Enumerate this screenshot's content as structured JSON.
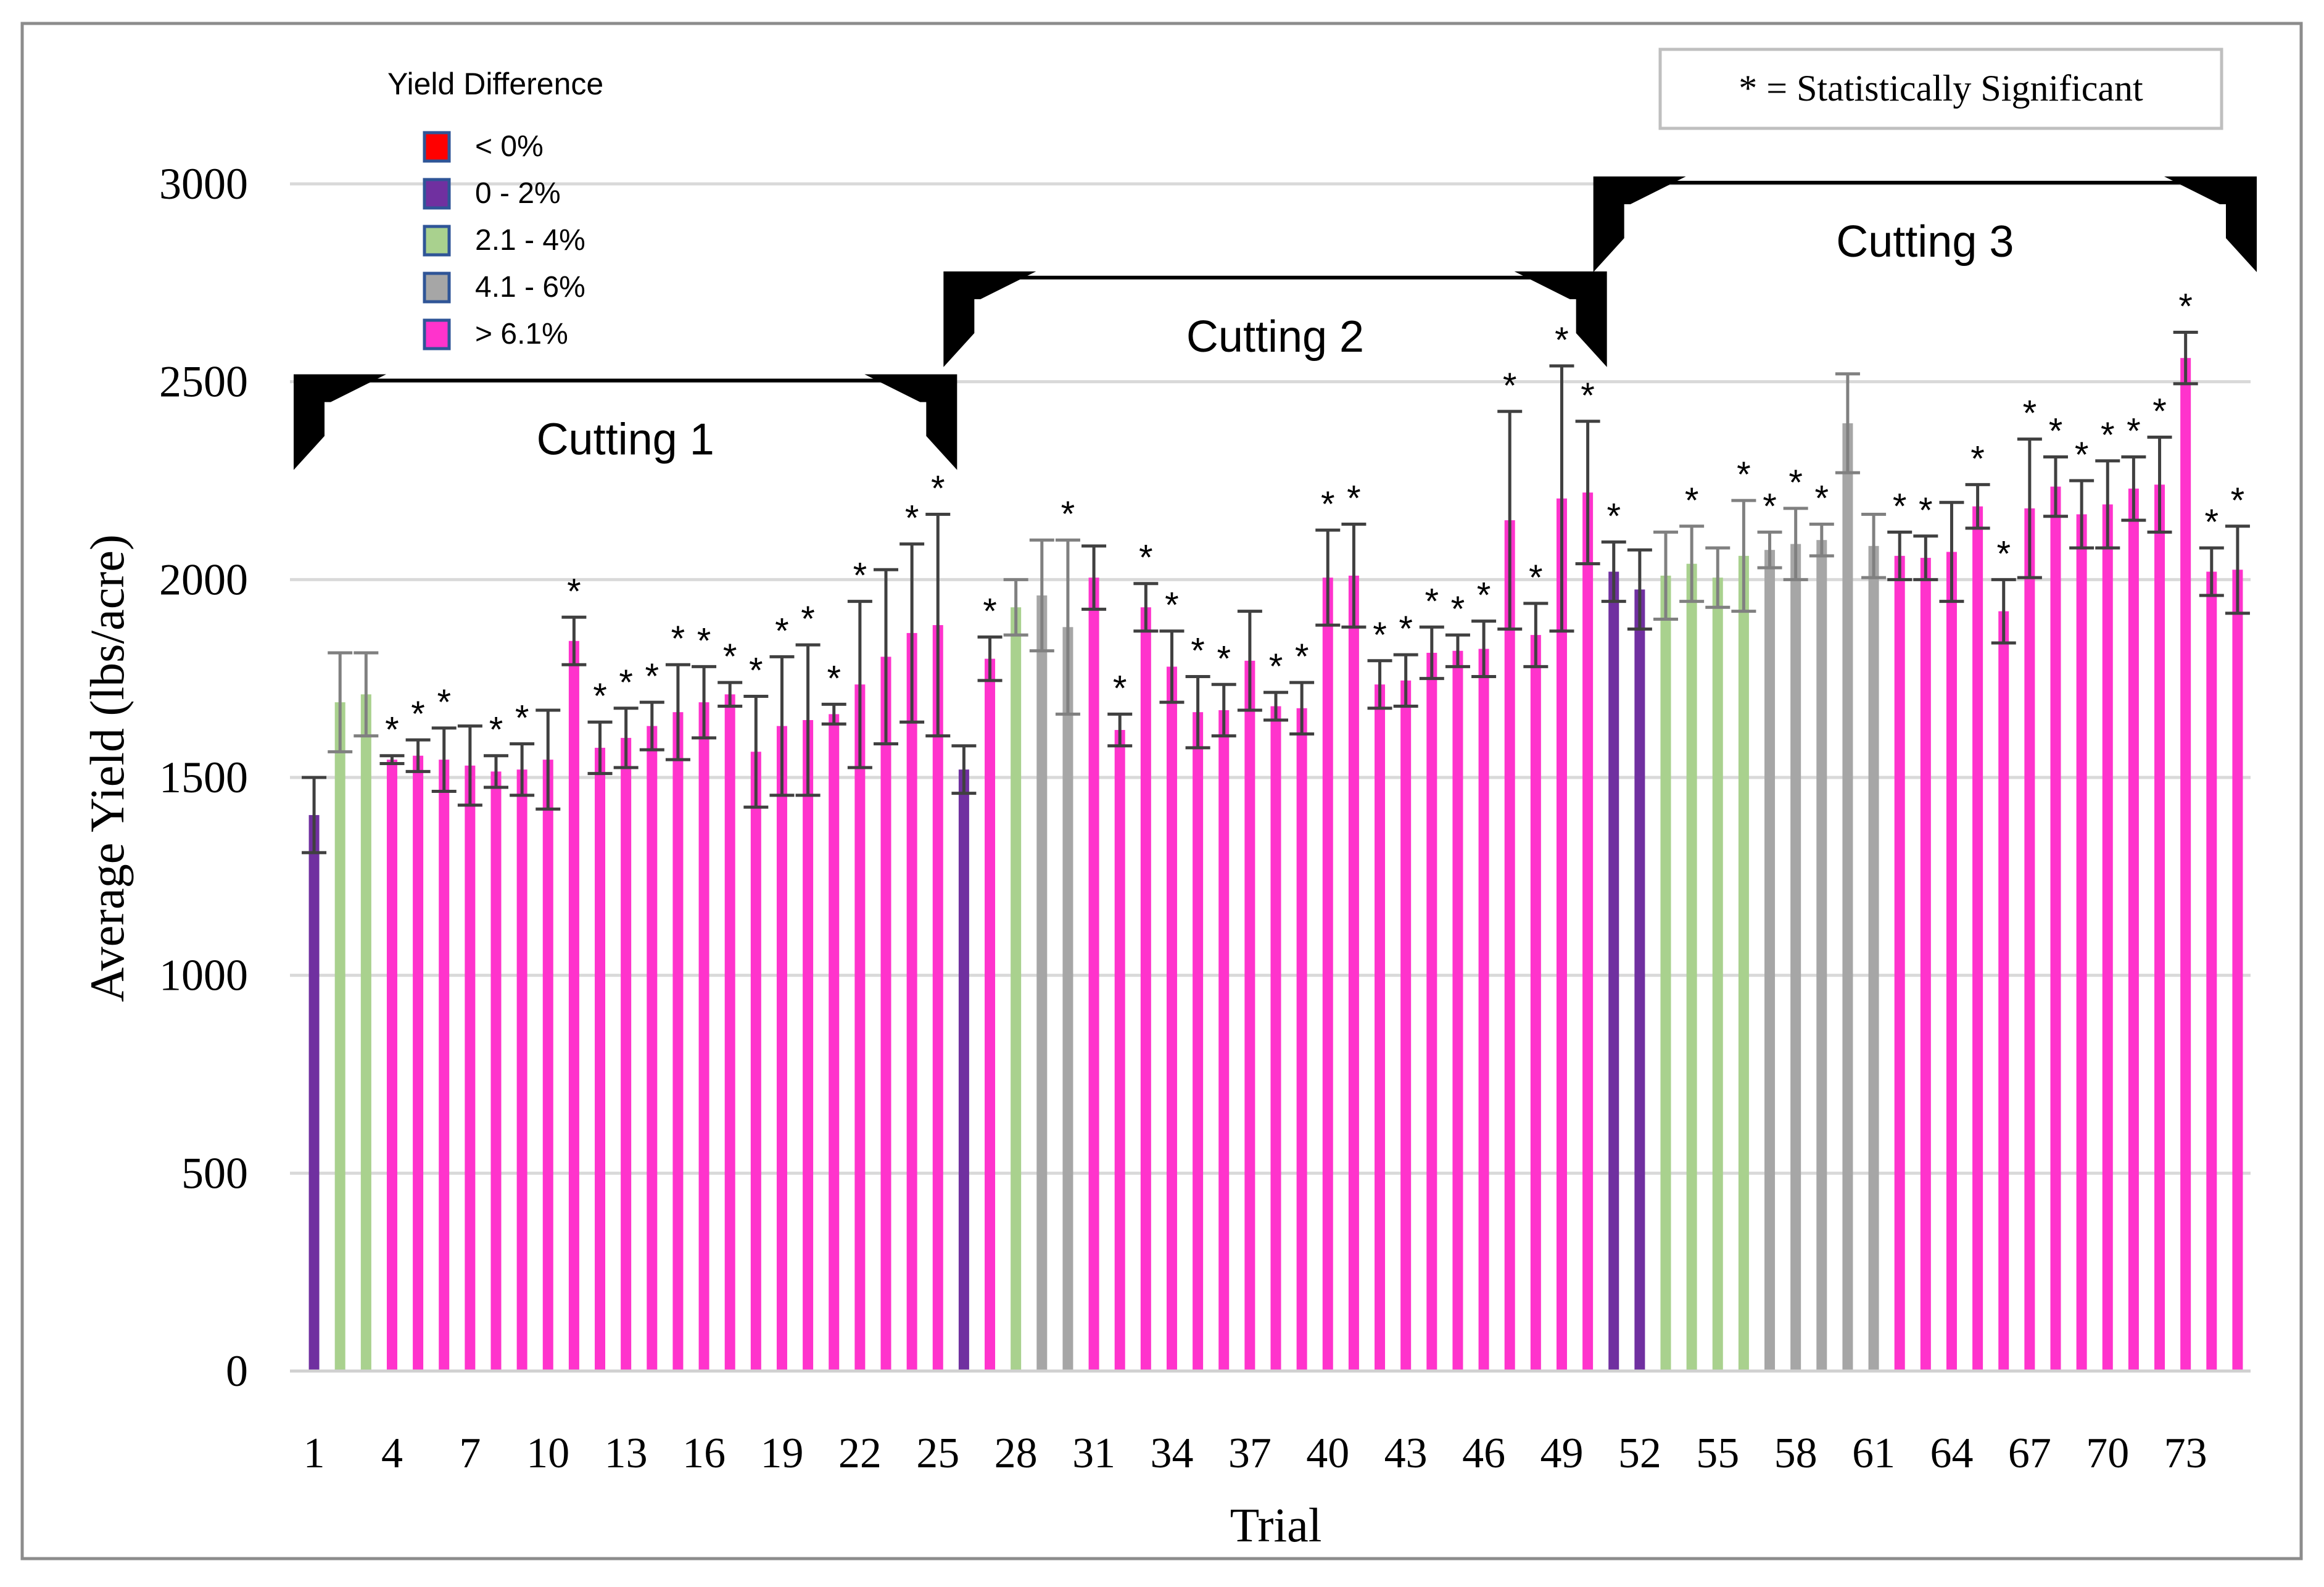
{
  "chart_data": {
    "type": "bar",
    "title": "",
    "xlabel": "Trial",
    "ylabel": "Average Yield (lbs/acre)",
    "ylim": [
      0,
      3000
    ],
    "y_ticks": [
      "0",
      "500",
      "1000",
      "1500",
      "2000",
      "2500",
      "3000"
    ],
    "x_tick_labels": [
      "1",
      "4",
      "7",
      "10",
      "13",
      "16",
      "19",
      "22",
      "25",
      "28",
      "31",
      "34",
      "37",
      "40",
      "43",
      "46",
      "49",
      "52",
      "55",
      "58",
      "61",
      "64",
      "67",
      "70",
      "73"
    ],
    "grid": true,
    "legend": {
      "title": "Yield Difference",
      "position": "top-left",
      "items": [
        {
          "label": "< 0%",
          "color": "#ff0000",
          "key": "neg"
        },
        {
          "label": "0 - 2%",
          "color": "#7030a0",
          "key": "low"
        },
        {
          "label": "2.1 - 4%",
          "color": "#a9d18e",
          "key": "mid"
        },
        {
          "label": "4.1 - 6%",
          "color": "#a6a6a6",
          "key": "high"
        },
        {
          "label": "> 6.1%",
          "color": "#ff33cc",
          "key": "top"
        }
      ]
    },
    "significance_note": "* = Statistically Significant",
    "significance_marker": "*",
    "cuttings": [
      {
        "label": "Cutting 1",
        "start": 1,
        "end": 25,
        "level": 2500
      },
      {
        "label": "Cutting 2",
        "start": 26,
        "end": 50,
        "level": 2760
      },
      {
        "label": "Cutting 3",
        "start": 51,
        "end": 75,
        "level": 3000
      }
    ],
    "trials": [
      {
        "trial": 1,
        "value": 1405,
        "err": 95,
        "category": "low",
        "significant": false
      },
      {
        "trial": 2,
        "value": 1690,
        "err": 125,
        "category": "mid",
        "significant": false
      },
      {
        "trial": 3,
        "value": 1710,
        "err": 105,
        "category": "mid",
        "significant": false
      },
      {
        "trial": 4,
        "value": 1545,
        "err": 10,
        "category": "top",
        "significant": true
      },
      {
        "trial": 5,
        "value": 1555,
        "err": 40,
        "category": "top",
        "significant": true
      },
      {
        "trial": 6,
        "value": 1545,
        "err": 80,
        "category": "top",
        "significant": true
      },
      {
        "trial": 7,
        "value": 1530,
        "err": 100,
        "category": "top",
        "significant": false
      },
      {
        "trial": 8,
        "value": 1515,
        "err": 40,
        "category": "top",
        "significant": true
      },
      {
        "trial": 9,
        "value": 1520,
        "err": 65,
        "category": "top",
        "significant": true
      },
      {
        "trial": 10,
        "value": 1545,
        "err": 125,
        "category": "top",
        "significant": false
      },
      {
        "trial": 11,
        "value": 1845,
        "err": 60,
        "category": "top",
        "significant": true
      },
      {
        "trial": 12,
        "value": 1575,
        "err": 65,
        "category": "top",
        "significant": true
      },
      {
        "trial": 13,
        "value": 1600,
        "err": 75,
        "category": "top",
        "significant": true
      },
      {
        "trial": 14,
        "value": 1630,
        "err": 60,
        "category": "top",
        "significant": true
      },
      {
        "trial": 15,
        "value": 1665,
        "err": 120,
        "category": "top",
        "significant": true
      },
      {
        "trial": 16,
        "value": 1690,
        "err": 90,
        "category": "top",
        "significant": true
      },
      {
        "trial": 17,
        "value": 1710,
        "err": 30,
        "category": "top",
        "significant": true
      },
      {
        "trial": 18,
        "value": 1565,
        "err": 140,
        "category": "top",
        "significant": true
      },
      {
        "trial": 19,
        "value": 1630,
        "err": 175,
        "category": "top",
        "significant": true
      },
      {
        "trial": 20,
        "value": 1645,
        "err": 190,
        "category": "top",
        "significant": true
      },
      {
        "trial": 21,
        "value": 1660,
        "err": 25,
        "category": "top",
        "significant": true
      },
      {
        "trial": 22,
        "value": 1735,
        "err": 210,
        "category": "top",
        "significant": true
      },
      {
        "trial": 23,
        "value": 1805,
        "err": 220,
        "category": "top",
        "significant": false
      },
      {
        "trial": 24,
        "value": 1865,
        "err": 225,
        "category": "top",
        "significant": true
      },
      {
        "trial": 25,
        "value": 1885,
        "err": 280,
        "category": "top",
        "significant": true
      },
      {
        "trial": 26,
        "value": 1520,
        "err": 60,
        "category": "low",
        "significant": false
      },
      {
        "trial": 27,
        "value": 1800,
        "err": 55,
        "category": "top",
        "significant": true
      },
      {
        "trial": 28,
        "value": 1930,
        "err": 70,
        "category": "mid",
        "significant": false
      },
      {
        "trial": 29,
        "value": 1960,
        "err": 140,
        "category": "high",
        "significant": false
      },
      {
        "trial": 30,
        "value": 1880,
        "err": 220,
        "category": "high",
        "significant": true
      },
      {
        "trial": 31,
        "value": 2005,
        "err": 80,
        "category": "top",
        "significant": false
      },
      {
        "trial": 32,
        "value": 1620,
        "err": 40,
        "category": "top",
        "significant": true
      },
      {
        "trial": 33,
        "value": 1930,
        "err": 60,
        "category": "top",
        "significant": true
      },
      {
        "trial": 34,
        "value": 1780,
        "err": 90,
        "category": "top",
        "significant": true
      },
      {
        "trial": 35,
        "value": 1665,
        "err": 90,
        "category": "top",
        "significant": true
      },
      {
        "trial": 36,
        "value": 1670,
        "err": 65,
        "category": "top",
        "significant": true
      },
      {
        "trial": 37,
        "value": 1795,
        "err": 125,
        "category": "top",
        "significant": false
      },
      {
        "trial": 38,
        "value": 1680,
        "err": 35,
        "category": "top",
        "significant": true
      },
      {
        "trial": 39,
        "value": 1675,
        "err": 65,
        "category": "top",
        "significant": true
      },
      {
        "trial": 40,
        "value": 2005,
        "err": 120,
        "category": "top",
        "significant": true
      },
      {
        "trial": 41,
        "value": 2010,
        "err": 130,
        "category": "top",
        "significant": true
      },
      {
        "trial": 42,
        "value": 1735,
        "err": 60,
        "category": "top",
        "significant": true
      },
      {
        "trial": 43,
        "value": 1745,
        "err": 65,
        "category": "top",
        "significant": true
      },
      {
        "trial": 44,
        "value": 1815,
        "err": 65,
        "category": "top",
        "significant": true
      },
      {
        "trial": 45,
        "value": 1820,
        "err": 40,
        "category": "top",
        "significant": true
      },
      {
        "trial": 46,
        "value": 1825,
        "err": 70,
        "category": "top",
        "significant": true
      },
      {
        "trial": 47,
        "value": 2150,
        "err": 275,
        "category": "top",
        "significant": true
      },
      {
        "trial": 48,
        "value": 1860,
        "err": 80,
        "category": "top",
        "significant": true
      },
      {
        "trial": 49,
        "value": 2205,
        "err": 335,
        "category": "top",
        "significant": true
      },
      {
        "trial": 50,
        "value": 2220,
        "err": 180,
        "category": "top",
        "significant": true
      },
      {
        "trial": 51,
        "value": 2020,
        "err": 75,
        "category": "low",
        "significant": true
      },
      {
        "trial": 52,
        "value": 1975,
        "err": 100,
        "category": "low",
        "significant": false
      },
      {
        "trial": 53,
        "value": 2010,
        "err": 110,
        "category": "mid",
        "significant": false
      },
      {
        "trial": 54,
        "value": 2040,
        "err": 95,
        "category": "mid",
        "significant": true
      },
      {
        "trial": 55,
        "value": 2005,
        "err": 75,
        "category": "mid",
        "significant": false
      },
      {
        "trial": 56,
        "value": 2060,
        "err": 140,
        "category": "mid",
        "significant": true
      },
      {
        "trial": 57,
        "value": 2075,
        "err": 45,
        "category": "high",
        "significant": true
      },
      {
        "trial": 58,
        "value": 2090,
        "err": 90,
        "category": "high",
        "significant": true
      },
      {
        "trial": 59,
        "value": 2100,
        "err": 40,
        "category": "high",
        "significant": true
      },
      {
        "trial": 60,
        "value": 2395,
        "err": 125,
        "category": "high",
        "significant": false
      },
      {
        "trial": 61,
        "value": 2085,
        "err": 80,
        "category": "high",
        "significant": false
      },
      {
        "trial": 62,
        "value": 2060,
        "err": 60,
        "category": "top",
        "significant": true
      },
      {
        "trial": 63,
        "value": 2055,
        "err": 55,
        "category": "top",
        "significant": true
      },
      {
        "trial": 64,
        "value": 2070,
        "err": 125,
        "category": "top",
        "significant": false
      },
      {
        "trial": 65,
        "value": 2185,
        "err": 55,
        "category": "top",
        "significant": true
      },
      {
        "trial": 66,
        "value": 1920,
        "err": 80,
        "category": "top",
        "significant": true
      },
      {
        "trial": 67,
        "value": 2180,
        "err": 175,
        "category": "top",
        "significant": true
      },
      {
        "trial": 68,
        "value": 2235,
        "err": 75,
        "category": "top",
        "significant": true
      },
      {
        "trial": 69,
        "value": 2165,
        "err": 85,
        "category": "top",
        "significant": true
      },
      {
        "trial": 70,
        "value": 2190,
        "err": 110,
        "category": "top",
        "significant": true
      },
      {
        "trial": 71,
        "value": 2230,
        "err": 80,
        "category": "top",
        "significant": true
      },
      {
        "trial": 72,
        "value": 2240,
        "err": 120,
        "category": "top",
        "significant": true
      },
      {
        "trial": 73,
        "value": 2560,
        "err": 65,
        "category": "top",
        "significant": true
      },
      {
        "trial": 74,
        "value": 2020,
        "err": 60,
        "category": "top",
        "significant": true
      },
      {
        "trial": 75,
        "value": 2025,
        "err": 110,
        "category": "top",
        "significant": true
      }
    ]
  }
}
